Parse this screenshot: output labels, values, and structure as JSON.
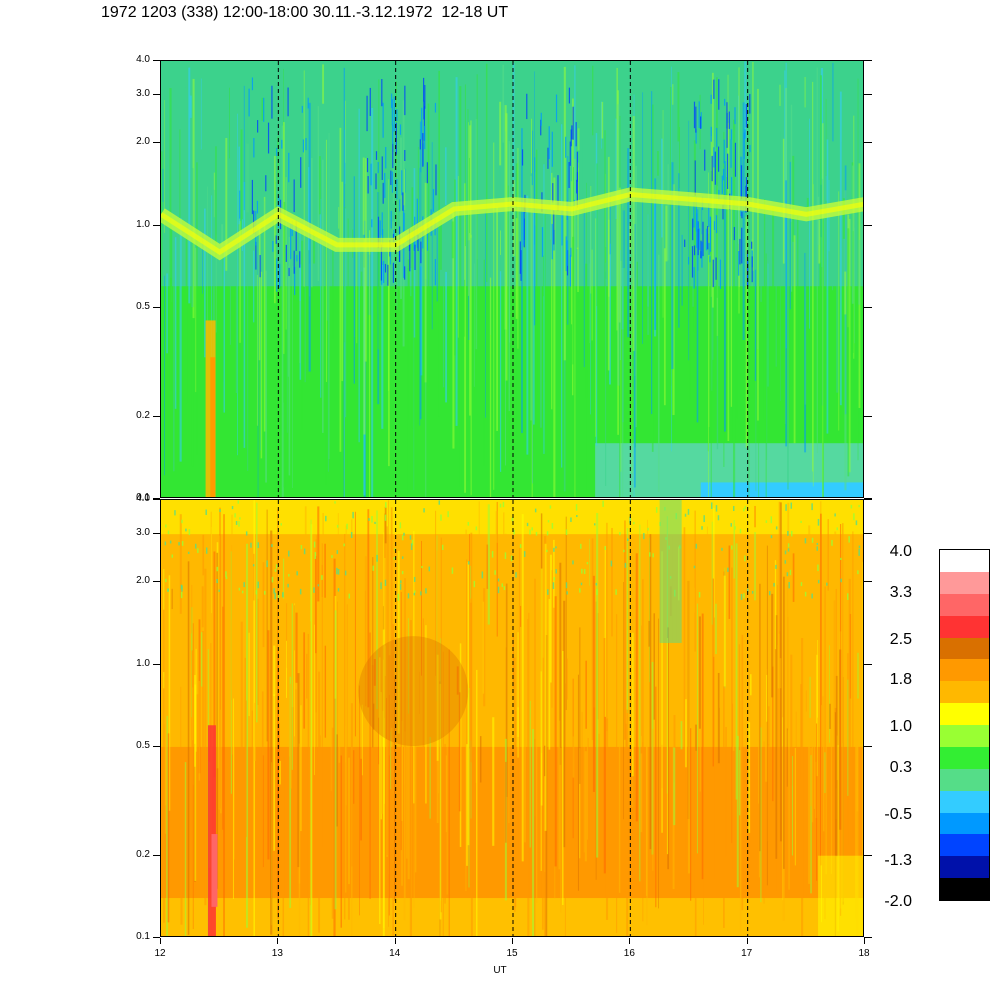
{
  "title": "1972 1203 (338) 12:00-18:00 30.11.-3.12.1972  12-18 UT",
  "chart_data": {
    "type": "heatmap",
    "panels": [
      {
        "name": "top",
        "ylim": [
          0.1,
          4.0
        ],
        "yscale": "log",
        "yticks": [
          "4.0",
          "3.0",
          "2.0",
          "1.0",
          "0.5",
          "0.2",
          "0.1"
        ],
        "ytick_values": [
          4.0,
          3.0,
          2.0,
          1.0,
          0.5,
          0.2,
          0.1
        ],
        "dominant_levels": [
          "green",
          "cyan",
          "light-green",
          "yellow band near 1.0",
          "blue streaks"
        ],
        "band_y": [
          1.1,
          0.8,
          1.1,
          0.85,
          0.85,
          1.15,
          1.2,
          1.15,
          1.3,
          1.25,
          1.2,
          1.1,
          1.2
        ]
      },
      {
        "name": "bottom",
        "ylim": [
          0.1,
          4.0
        ],
        "yscale": "log",
        "yticks": [
          "4.0",
          "3.0",
          "2.0",
          "1.0",
          "0.5",
          "0.2",
          "0.1"
        ],
        "ytick_values": [
          4.0,
          3.0,
          2.0,
          1.0,
          0.5,
          0.2,
          0.1
        ],
        "dominant_levels": [
          "orange",
          "amber",
          "yellow",
          "red streaks"
        ]
      }
    ],
    "x": {
      "label": "UT",
      "lim": [
        12,
        18
      ],
      "ticks": [
        "12",
        "13",
        "14",
        "15",
        "16",
        "17",
        "18"
      ],
      "tick_values": [
        12,
        13,
        14,
        15,
        16,
        17,
        18
      ]
    },
    "dashed_lines_at": [
      13,
      14,
      15,
      16,
      17
    ],
    "colorbar": {
      "labels": [
        "4.0",
        "3.3",
        "2.5",
        "1.8",
        "1.0",
        "0.3",
        "-0.5",
        "-1.3",
        "-2.0"
      ],
      "colors_top_to_bottom": [
        "#ffffff",
        "#ff9999",
        "#ff6666",
        "#ff3333",
        "#d97000",
        "#ff9900",
        "#ffb800",
        "#ffff00",
        "#99ff33",
        "#33ee33",
        "#55dd88",
        "#33ccff",
        "#0099ff",
        "#0044ff",
        "#0011aa",
        "#000000"
      ],
      "range": [
        -2.0,
        4.0
      ]
    }
  }
}
